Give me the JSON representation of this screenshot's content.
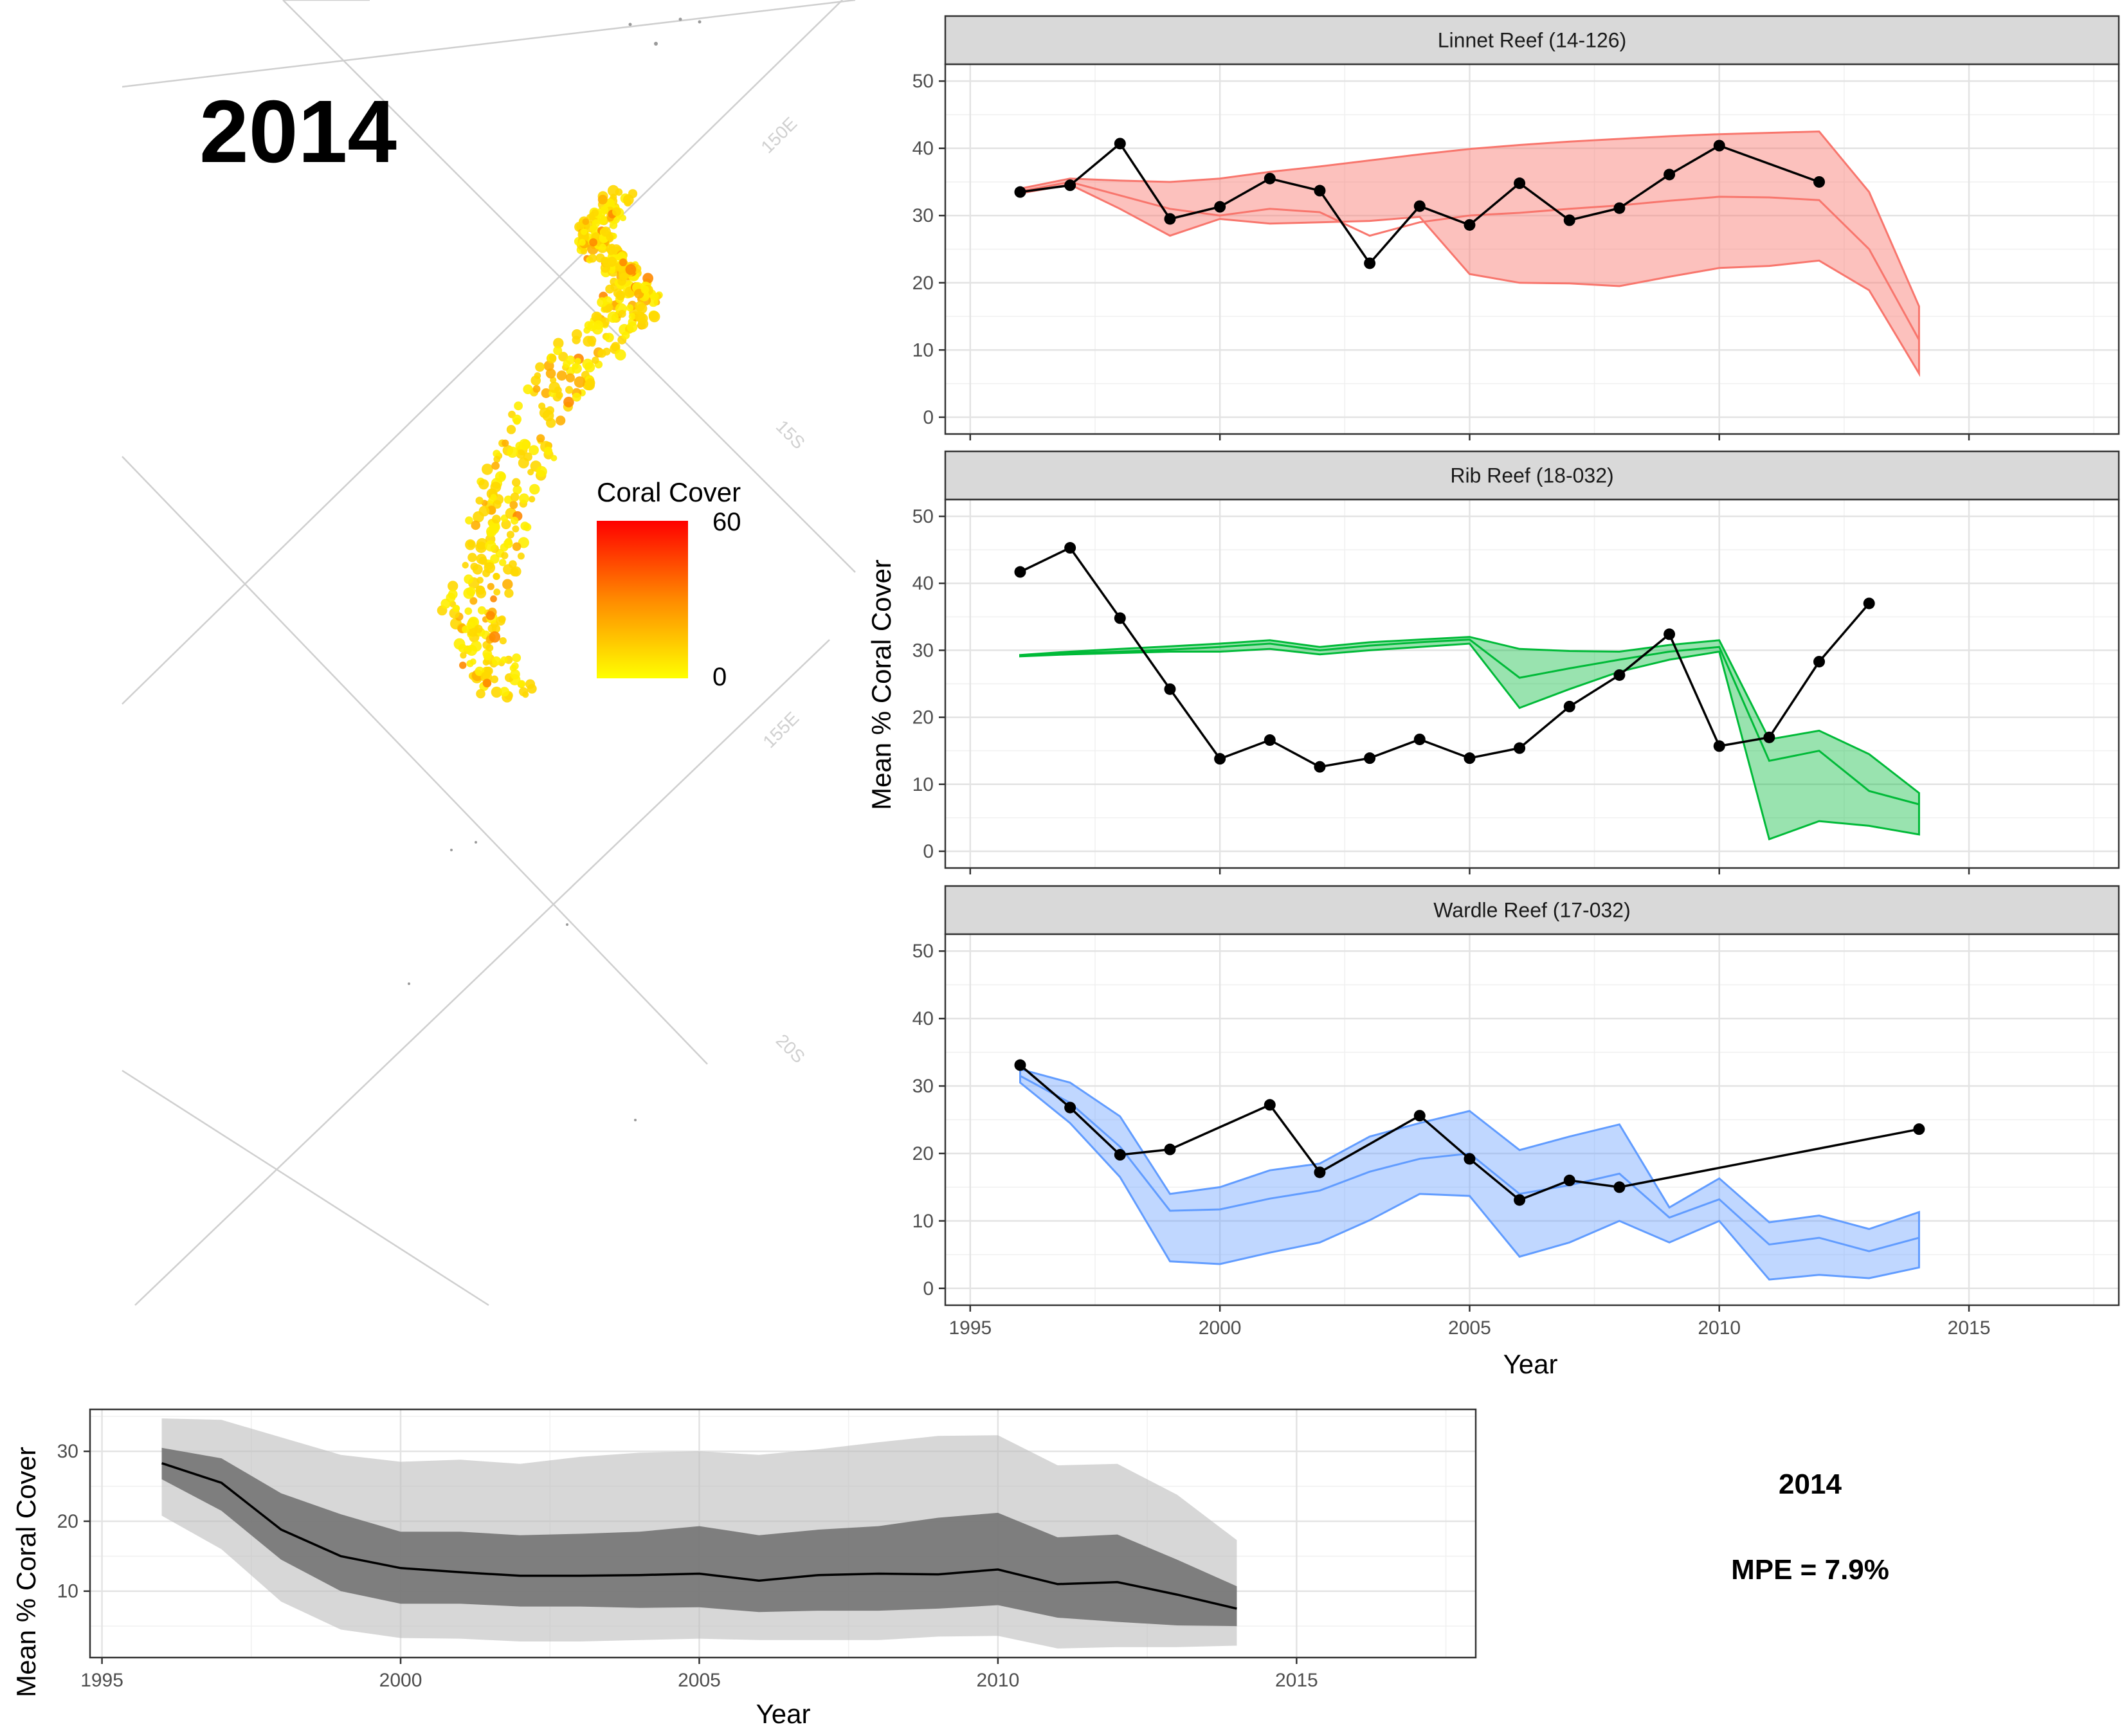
{
  "map": {
    "year_title": "2014",
    "grid_labels": [
      "150E",
      "15S",
      "155E",
      "20S"
    ],
    "legend": {
      "title": "Coral Cover",
      "max_label": "60",
      "min_label": "0",
      "color_high": "#ff0000",
      "color_low": "#ffff00"
    }
  },
  "summary": {
    "year": "2014",
    "mpe": "MPE = 7.9%"
  },
  "colors": {
    "linnet": "#f8766d",
    "rib": "#00ba38",
    "wardle": "#619cff",
    "observed": "#000000",
    "overall": "#000000"
  },
  "chart_data": [
    {
      "type": "line",
      "title": "Linnet Reef (14-126)",
      "xlabel": "Year",
      "ylabel": "Mean % Coral Cover",
      "xlim": [
        1994.5,
        2018
      ],
      "ylim": [
        -2.5,
        52.5
      ],
      "x_ticks": [
        "1995",
        "2000",
        "2005",
        "2010",
        "2015"
      ],
      "y_ticks": [
        "0",
        "10",
        "20",
        "30",
        "40",
        "50"
      ],
      "grid": true,
      "legend": "none",
      "band": {
        "x": [
          1996,
          1997,
          1998,
          1999,
          2000,
          2001,
          2002,
          2003,
          2004,
          2005,
          2006,
          2007,
          2008,
          2009,
          2010,
          2011,
          2012,
          2013,
          2014
        ],
        "upper": [
          34,
          35.5,
          35.2,
          35,
          35.5,
          36.5,
          37.3,
          38.2,
          39.1,
          39.9,
          40.5,
          41,
          41.4,
          41.8,
          42.1,
          42.3,
          42.5,
          33.5,
          16.5
        ],
        "mean": [
          33.6,
          35,
          33,
          31,
          30,
          31,
          30.5,
          27,
          29,
          30,
          30.4,
          31,
          31.5,
          32.2,
          32.8,
          32.7,
          32.3,
          25,
          11.5
        ],
        "lower": [
          33.3,
          34.6,
          31,
          27,
          29.5,
          28.8,
          29,
          29.2,
          29.8,
          21.3,
          20,
          19.9,
          19.5,
          20.9,
          22.2,
          22.5,
          23.3,
          18.9,
          6.5
        ]
      },
      "series": [
        {
          "name": "",
          "x": [
            1996,
            1997,
            1998,
            1999,
            2000,
            2001,
            2002,
            2003,
            2004,
            2005,
            2006,
            2007,
            2008,
            2009,
            2010,
            2012
          ],
          "y": [
            33.5,
            34.5,
            40.7,
            29.5,
            31.3,
            35.5,
            33.7,
            22.9,
            31.4,
            28.6,
            34.8,
            29.3,
            31.1,
            36.1,
            40.4,
            35
          ]
        }
      ]
    },
    {
      "type": "line",
      "title": "Rib Reef (18-032)",
      "xlabel": "Year",
      "ylabel": "Mean % Coral Cover",
      "xlim": [
        1994.5,
        2018
      ],
      "ylim": [
        -2.5,
        52.5
      ],
      "x_ticks": [
        "1995",
        "2000",
        "2005",
        "2010",
        "2015"
      ],
      "y_ticks": [
        "0",
        "10",
        "20",
        "30",
        "40",
        "50"
      ],
      "grid": true,
      "legend": "none",
      "band": {
        "x": [
          1996,
          1997,
          1998,
          1999,
          2000,
          2001,
          2002,
          2003,
          2004,
          2005,
          2006,
          2007,
          2008,
          2009,
          2010,
          2011,
          2012,
          2013,
          2014
        ],
        "upper": [
          29.3,
          29.8,
          30.2,
          30.6,
          31,
          31.5,
          30.5,
          31.2,
          31.6,
          32,
          30.2,
          29.9,
          29.8,
          30.8,
          31.5,
          16.7,
          18,
          14.5,
          8.7
        ],
        "mean": [
          29.2,
          29.6,
          29.8,
          30.1,
          30.5,
          31,
          30,
          30.7,
          31.2,
          31.6,
          25.9,
          27.3,
          28.6,
          29.8,
          30.5,
          13.5,
          15,
          9,
          7
        ],
        "lower": [
          29.1,
          29.4,
          29.6,
          29.8,
          29.8,
          30.2,
          29.4,
          30,
          30.5,
          31,
          21.4,
          24.2,
          26.8,
          28.6,
          29.8,
          1.8,
          4.5,
          3.8,
          2.5
        ]
      },
      "series": [
        {
          "name": "",
          "x": [
            1996,
            1997,
            1998,
            1999,
            2000,
            2001,
            2002,
            2003,
            2004,
            2005,
            2006,
            2007,
            2008,
            2009,
            2010,
            2011,
            2012,
            2013
          ],
          "y": [
            41.7,
            45.3,
            34.8,
            24.2,
            13.8,
            16.6,
            12.6,
            13.9,
            16.7,
            13.9,
            15.4,
            21.6,
            26.3,
            32.4,
            15.7,
            17,
            28.3,
            37
          ]
        }
      ]
    },
    {
      "type": "line",
      "title": "Wardle Reef (17-032)",
      "xlabel": "Year",
      "ylabel": "Mean % Coral Cover",
      "xlim": [
        1994.5,
        2018
      ],
      "ylim": [
        -2.5,
        52.5
      ],
      "x_ticks": [
        "1995",
        "2000",
        "2005",
        "2010",
        "2015"
      ],
      "y_ticks": [
        "0",
        "10",
        "20",
        "30",
        "40",
        "50"
      ],
      "grid": true,
      "legend": "none",
      "band": {
        "x": [
          1996,
          1997,
          1998,
          1999,
          2000,
          2001,
          2002,
          2003,
          2004,
          2005,
          2006,
          2007,
          2008,
          2009,
          2010,
          2011,
          2012,
          2013,
          2014
        ],
        "upper": [
          32.5,
          30.5,
          25.5,
          14,
          15,
          17.5,
          18.5,
          22.5,
          24.5,
          26.3,
          20.5,
          22.5,
          24.3,
          12,
          16.3,
          9.8,
          10.8,
          8.8,
          11.3
        ],
        "mean": [
          31.5,
          27.5,
          21,
          11.5,
          11.7,
          13.3,
          14.5,
          17.3,
          19.2,
          20,
          14,
          15.3,
          17,
          10.5,
          13.2,
          6.5,
          7.5,
          5.5,
          7.5
        ],
        "lower": [
          30.5,
          24.5,
          16.5,
          4,
          3.6,
          5.3,
          6.8,
          10.1,
          14,
          13.7,
          4.7,
          6.8,
          10,
          6.8,
          10,
          1.3,
          2,
          1.5,
          3.1
        ]
      },
      "series": [
        {
          "name": "",
          "x": [
            1996,
            1997,
            1998,
            1999,
            2001,
            2002,
            2004,
            2005,
            2006,
            2007,
            2008,
            2014
          ],
          "y": [
            33.1,
            26.8,
            19.8,
            20.6,
            27.2,
            17.2,
            25.6,
            19.2,
            13.1,
            16,
            15,
            23.6
          ]
        }
      ]
    },
    {
      "type": "area",
      "title": "",
      "xlabel": "Year",
      "ylabel": "Mean % Coral Cover",
      "xlim": [
        1994.8,
        2018
      ],
      "ylim": [
        0.5,
        36
      ],
      "x_ticks": [
        "1995",
        "2000",
        "2005",
        "2010",
        "2015"
      ],
      "y_ticks": [
        "10",
        "20",
        "30"
      ],
      "grid": true,
      "legend": "none",
      "x": [
        1996,
        1997,
        1998,
        1999,
        2000,
        2001,
        2002,
        2003,
        2004,
        2005,
        2006,
        2007,
        2008,
        2009,
        2010,
        2011,
        2012,
        2013,
        2014
      ],
      "outer_upper": [
        34.7,
        34.5,
        32,
        29.5,
        28.5,
        28.8,
        28.2,
        29.2,
        29.8,
        30,
        29.5,
        30.3,
        31.3,
        32.2,
        32.3,
        28,
        28.2,
        23.8,
        17.3
      ],
      "inner_upper": [
        30.5,
        29,
        24,
        21,
        18.5,
        18.5,
        18,
        18.2,
        18.5,
        19.3,
        18,
        18.8,
        19.3,
        20.5,
        21.2,
        17.7,
        18.1,
        14.5,
        10.7
      ],
      "mean": [
        28.3,
        25.5,
        18.8,
        15,
        13.3,
        12.7,
        12.2,
        12.2,
        12.3,
        12.5,
        11.5,
        12.3,
        12.5,
        12.4,
        13.1,
        11,
        11.3,
        9.5,
        7.5
      ],
      "inner_lower": [
        26,
        21.5,
        14.5,
        10,
        8.2,
        8.2,
        7.8,
        7.8,
        7.6,
        7.7,
        7,
        7.2,
        7.2,
        7.5,
        8,
        6.2,
        5.6,
        5.1,
        5
      ],
      "outer_lower": [
        20.8,
        16,
        8.5,
        4.5,
        3.3,
        3.2,
        2.8,
        2.8,
        3,
        3.2,
        3,
        3,
        3,
        3.5,
        3.6,
        1.8,
        2,
        2,
        2.2
      ]
    }
  ]
}
